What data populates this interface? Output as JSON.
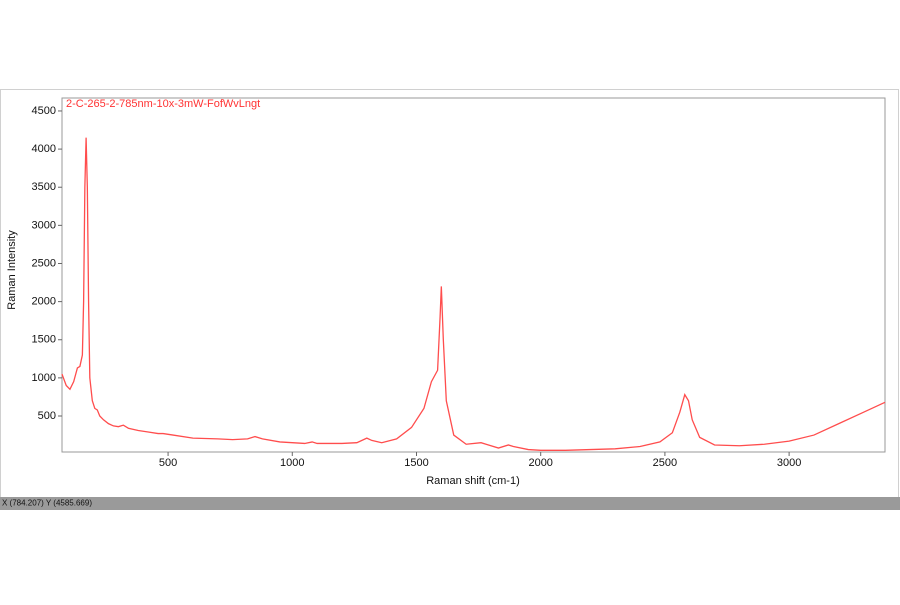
{
  "chart_data": {
    "type": "line",
    "title": "2-C-265-2-785nm-10x-3mW-FofWvLngt",
    "x_label": "Raman shift (cm-1)",
    "y_label": "Raman Intensity",
    "status": "X (784.207) Y (4585.669)",
    "x": [
      73,
      90,
      105,
      120,
      135,
      145,
      155,
      160,
      165,
      170,
      175,
      180,
      185,
      195,
      205,
      215,
      225,
      240,
      260,
      280,
      300,
      320,
      340,
      380,
      420,
      460,
      480,
      520,
      600,
      700,
      760,
      820,
      850,
      880,
      950,
      1050,
      1080,
      1100,
      1200,
      1260,
      1300,
      1320,
      1360,
      1420,
      1480,
      1530,
      1560,
      1585,
      1595,
      1600,
      1608,
      1620,
      1650,
      1700,
      1760,
      1780,
      1830,
      1870,
      1890,
      1950,
      2000,
      2100,
      2200,
      2300,
      2400,
      2480,
      2530,
      2560,
      2580,
      2595,
      2610,
      2640,
      2700,
      2800,
      2900,
      3000,
      3100,
      3200,
      3300,
      3386
    ],
    "series": [
      {
        "name": "2-C-265-2-785nm-10x-3mW-FofWvLngt",
        "color": "#ff4d4d",
        "values": [
          1050,
          900,
          850,
          950,
          1130,
          1150,
          1300,
          2000,
          3500,
          4150,
          3500,
          2000,
          1000,
          700,
          600,
          580,
          500,
          450,
          400,
          370,
          360,
          380,
          340,
          310,
          290,
          270,
          270,
          250,
          210,
          200,
          190,
          200,
          230,
          200,
          160,
          140,
          160,
          140,
          140,
          150,
          210,
          180,
          150,
          200,
          350,
          600,
          950,
          1100,
          1800,
          2200,
          1500,
          700,
          250,
          130,
          150,
          130,
          80,
          120,
          100,
          60,
          50,
          50,
          60,
          70,
          100,
          160,
          280,
          550,
          780,
          700,
          450,
          220,
          120,
          110,
          130,
          170,
          250,
          400,
          550,
          680
        ]
      }
    ],
    "xlim": [
      73,
      3386
    ],
    "ylim": [
      28,
      4670
    ],
    "xticks": [
      500,
      1000,
      1500,
      2000,
      2500,
      3000
    ],
    "yticks": [
      500,
      1000,
      1500,
      2000,
      2500,
      3000,
      3500,
      4000,
      4500
    ]
  }
}
